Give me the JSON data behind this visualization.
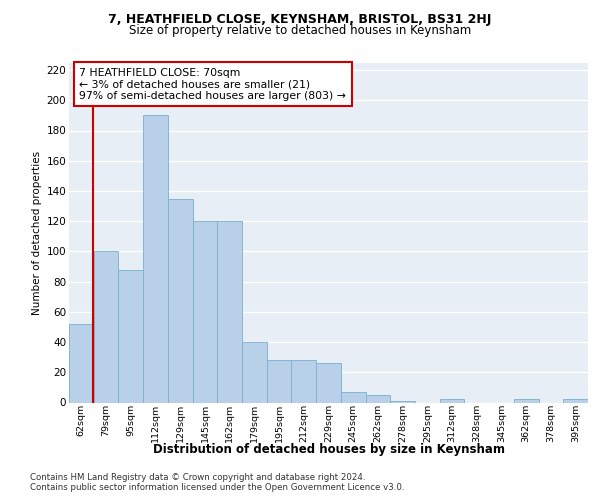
{
  "title": "7, HEATHFIELD CLOSE, KEYNSHAM, BRISTOL, BS31 2HJ",
  "subtitle": "Size of property relative to detached houses in Keynsham",
  "xlabel_bottom": "Distribution of detached houses by size in Keynsham",
  "ylabel": "Number of detached properties",
  "categories": [
    "62sqm",
    "79sqm",
    "95sqm",
    "112sqm",
    "129sqm",
    "145sqm",
    "162sqm",
    "179sqm",
    "195sqm",
    "212sqm",
    "229sqm",
    "245sqm",
    "262sqm",
    "278sqm",
    "295sqm",
    "312sqm",
    "328sqm",
    "345sqm",
    "362sqm",
    "378sqm",
    "395sqm"
  ],
  "values": [
    52,
    100,
    88,
    190,
    135,
    120,
    120,
    40,
    28,
    28,
    26,
    7,
    5,
    1,
    0,
    2,
    0,
    0,
    2,
    0,
    2
  ],
  "bar_color": "#b8d0e8",
  "bar_edge_color": "#7aafd0",
  "bar_edge_width": 0.6,
  "annotation_box_text": "7 HEATHFIELD CLOSE: 70sqm\n← 3% of detached houses are smaller (21)\n97% of semi-detached houses are larger (803) →",
  "annotation_box_color": "#ffffff",
  "annotation_box_edge_color": "#cc0000",
  "marker_line_color": "#cc0000",
  "background_color": "#e8eef5",
  "grid_color": "#ffffff",
  "footer_text": "Contains HM Land Registry data © Crown copyright and database right 2024.\nContains public sector information licensed under the Open Government Licence v3.0.",
  "ylim": [
    0,
    225
  ],
  "yticks": [
    0,
    20,
    40,
    60,
    80,
    100,
    120,
    140,
    160,
    180,
    200,
    220
  ]
}
